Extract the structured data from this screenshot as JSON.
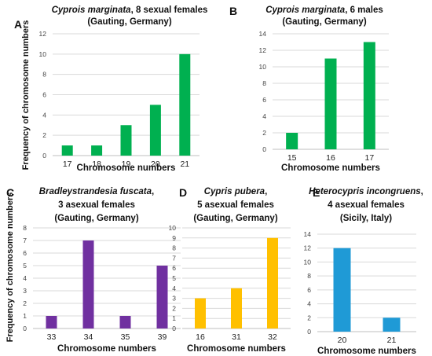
{
  "chart_data": [
    {
      "panel": "A",
      "type": "bar",
      "title_species": "Cyprois marginata",
      "title_lines": [
        ", 8 sexual females",
        "(Gauting, Germany)"
      ],
      "categories": [
        "17",
        "18",
        "19",
        "20",
        "21"
      ],
      "values": [
        1,
        1,
        3,
        5,
        10
      ],
      "ylim": [
        0,
        12
      ],
      "yticks": [
        0,
        2,
        4,
        6,
        8,
        10,
        12
      ],
      "xlabel": "Chromosome numbers",
      "ylabel": "Frequency of chromosome numbers",
      "color": "#00b050",
      "grid": true
    },
    {
      "panel": "B",
      "type": "bar",
      "title_species": "Cyprois marginata",
      "title_lines": [
        ", 6 males",
        "(Gauting, Germany)"
      ],
      "categories": [
        "15",
        "16",
        "17"
      ],
      "values": [
        2,
        11,
        13
      ],
      "ylim": [
        0,
        14
      ],
      "yticks": [
        0,
        2,
        4,
        6,
        8,
        10,
        12,
        14
      ],
      "xlabel": "Chromosome numbers",
      "ylabel": "",
      "color": "#00b050",
      "grid": true
    },
    {
      "panel": "C",
      "type": "bar",
      "title_species": "Bradleystrandesia fuscata",
      "title_lines": [
        ",",
        "3 asexual females",
        "(Gauting, Germany)"
      ],
      "categories": [
        "33",
        "34",
        "35",
        "39"
      ],
      "values": [
        1,
        7,
        1,
        5
      ],
      "ylim": [
        0,
        8
      ],
      "yticks": [
        0,
        1,
        2,
        3,
        4,
        5,
        6,
        7,
        8
      ],
      "xlabel": "Chromosome numbers",
      "ylabel": "Frequency of chromosome numbers",
      "color": "#7030a0",
      "grid": true
    },
    {
      "panel": "D",
      "type": "bar",
      "title_species": "Cypris pubera",
      "title_lines": [
        ",",
        "5 asexual females",
        "(Gauting, Germany)"
      ],
      "categories": [
        "16",
        "31",
        "32"
      ],
      "values": [
        3,
        4,
        9
      ],
      "ylim": [
        0,
        10
      ],
      "yticks": [
        0,
        1,
        2,
        3,
        4,
        5,
        6,
        7,
        8,
        9,
        10
      ],
      "xlabel": "Chromosome numbers",
      "ylabel": "",
      "color": "#ffc000",
      "grid": true
    },
    {
      "panel": "E",
      "type": "bar",
      "title_species": "Heterocypris incongruens",
      "title_lines": [
        ",",
        "4 asexual females",
        "(Sicily, Italy)"
      ],
      "categories": [
        "20",
        "21"
      ],
      "values": [
        12,
        2
      ],
      "ylim": [
        0,
        14
      ],
      "yticks": [
        0,
        2,
        4,
        6,
        8,
        10,
        12,
        14
      ],
      "xlabel": "Chromosome numbers",
      "ylabel": "",
      "color": "#1f9ad6",
      "grid": true
    }
  ]
}
